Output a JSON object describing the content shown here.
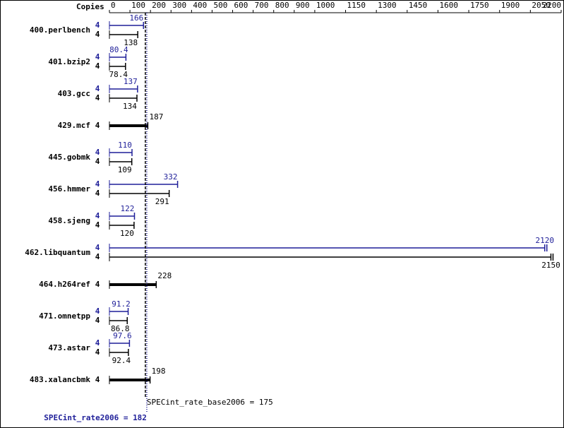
{
  "chart_data": {
    "type": "spec-bar",
    "copies_header": "Copies",
    "categories": [
      "400.perlbench",
      "401.bzip2",
      "403.gcc",
      "429.mcf",
      "445.gobmk",
      "456.hmmer",
      "458.sjeng",
      "462.libquantum",
      "464.h264ref",
      "471.omnetpp",
      "473.astar",
      "483.xalancbmk"
    ],
    "series": [
      {
        "color": "#1f1f99",
        "copies": [
          4,
          4,
          4,
          null,
          4,
          4,
          4,
          4,
          null,
          4,
          4,
          null
        ],
        "values": [
          166,
          80.4,
          137,
          null,
          110,
          332,
          122,
          2120,
          null,
          91.2,
          97.6,
          null
        ]
      },
      {
        "color": "#000000",
        "copies": [
          4,
          4,
          4,
          4,
          4,
          4,
          4,
          4,
          4,
          4,
          4,
          4
        ],
        "values": [
          138,
          78.4,
          134,
          187,
          109,
          291,
          120,
          2150,
          228,
          86.8,
          92.4,
          198
        ]
      }
    ],
    "xlim": [
      0,
      2200
    ],
    "xticks": [
      0,
      100,
      200,
      300,
      400,
      500,
      600,
      700,
      800,
      900,
      1000,
      1150,
      1300,
      1450,
      1600,
      1750,
      1900,
      2050,
      2200
    ],
    "reference_lines": [
      {
        "label": "SPECint_rate_base2006 = 175",
        "value": 175,
        "color": "#000000"
      },
      {
        "label": "SPECint_rate2006 = 182",
        "value": 182,
        "color": "#1f1f99"
      }
    ]
  }
}
